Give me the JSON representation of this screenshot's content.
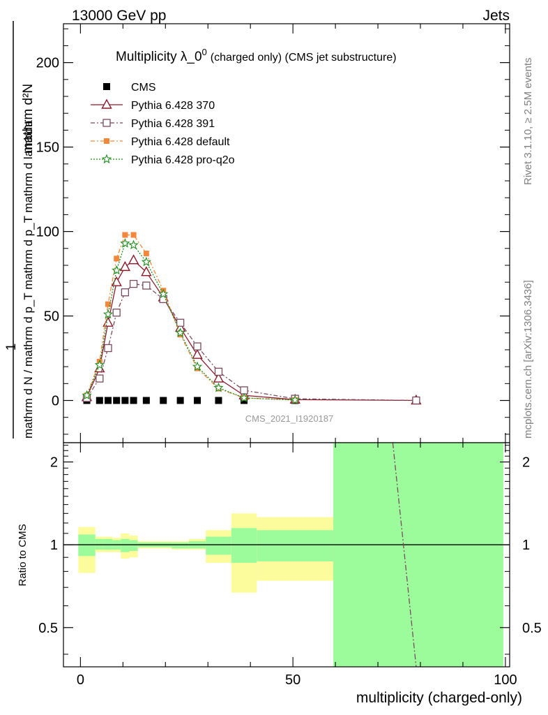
{
  "header": {
    "left": "13000 GeV pp",
    "right": "Jets"
  },
  "side_text": {
    "right_top": "Rivet 3.1.10, ≥ 2.5M events",
    "right_bottom": "mcplots.cern.ch [arXiv:1306.3436]"
  },
  "watermark": "CMS_2021_I1920187",
  "chart_data": [
    {
      "type": "line",
      "title": "Multiplicity λ_0",
      "title_sup": "0",
      "title_suffix": "(charged only) (CMS jet substructure)",
      "xlabel": "multiplicity (charged-only)",
      "ylabel_num": "mathrm d²N",
      "ylabel_den": "mathrm d N / mathrm d p_T mathrm d p_T mathrm d lambda",
      "ylabel_one": "1",
      "xlim": [
        -4,
        101
      ],
      "ylim": [
        -25,
        223
      ],
      "xticks": [
        0,
        50,
        100
      ],
      "yticks": [
        0,
        50,
        100,
        150,
        200
      ],
      "legend_position": "top-left",
      "series": [
        {
          "name": "CMS",
          "color": "#000000",
          "marker": "filled-square",
          "x": [
            1.5,
            4.5,
            6.5,
            8.5,
            10.5,
            12.5,
            15.5,
            19.5,
            23.5,
            27.5,
            32.5,
            38.5,
            50.5,
            79
          ],
          "y": [
            0,
            0,
            0,
            0,
            0,
            0,
            0,
            0,
            0,
            0,
            0,
            0,
            0,
            0
          ]
        },
        {
          "name": "Pythia 6.428 370",
          "color": "#8b1a2b",
          "marker": "open-triangle",
          "dash": "solid",
          "x": [
            1.5,
            4.5,
            6.5,
            8.5,
            10.5,
            12.5,
            15.5,
            19.5,
            23.5,
            27.5,
            32.5,
            38.5,
            50.5,
            79
          ],
          "y": [
            2,
            19,
            46,
            70,
            79,
            83,
            76,
            61,
            43,
            27,
            13,
            3,
            0.5,
            0
          ]
        },
        {
          "name": "Pythia 6.428 391",
          "color": "#7a4a5e",
          "marker": "open-square",
          "dash": "6,3,2,3",
          "x": [
            1.5,
            4.5,
            6.5,
            8.5,
            10.5,
            12.5,
            15.5,
            19.5,
            23.5,
            27.5,
            32.5,
            38.5,
            50.5,
            79
          ],
          "y": [
            1.5,
            13,
            31,
            52,
            64,
            69,
            68,
            60,
            46,
            32,
            17,
            6,
            1,
            0
          ]
        },
        {
          "name": "Pythia 6.428 default",
          "color": "#f5873a",
          "marker": "filled-square-small",
          "dash": "6,3,2,3",
          "x": [
            1.5,
            4.5,
            6.5,
            8.5,
            10.5,
            12.5,
            15.5,
            19.5,
            23.5,
            27.5,
            32.5,
            38.5,
            50.5
          ],
          "y": [
            3,
            23,
            57,
            84,
            98,
            98,
            87,
            65,
            39,
            19,
            7,
            1.5,
            0.3
          ]
        },
        {
          "name": "Pythia 6.428 pro-q2o",
          "color": "#1e8c1e",
          "marker": "open-star",
          "dash": "2,2",
          "x": [
            1.5,
            4.5,
            6.5,
            8.5,
            10.5,
            12.5,
            15.5,
            19.5,
            23.5,
            27.5,
            32.5,
            38.5,
            50.5
          ],
          "y": [
            3,
            21,
            51,
            77,
            93,
            92,
            82,
            63,
            40,
            20,
            7.5,
            1.5,
            0.2
          ]
        }
      ]
    },
    {
      "type": "area",
      "ylabel": "Ratio to CMS",
      "xlim": [
        -4,
        101
      ],
      "ylim": [
        0.36,
        2.35
      ],
      "xticks": [
        0,
        50,
        100
      ],
      "yticks": [
        0.5,
        1,
        2
      ],
      "bands": [
        {
          "x0": -0.5,
          "x1": 3.5,
          "inner": [
            0.91,
            1.09
          ],
          "outer": [
            0.79,
            1.16
          ]
        },
        {
          "x0": 3.5,
          "x1": 5.5,
          "inner": [
            0.96,
            1.05
          ],
          "outer": [
            0.94,
            1.07
          ]
        },
        {
          "x0": 5.5,
          "x1": 7.5,
          "inner": [
            0.96,
            1.05
          ],
          "outer": [
            0.94,
            1.07
          ]
        },
        {
          "x0": 7.5,
          "x1": 9.5,
          "inner": [
            0.96,
            1.04
          ],
          "outer": [
            0.94,
            1.06
          ]
        },
        {
          "x0": 9.5,
          "x1": 11.5,
          "inner": [
            0.94,
            1.05
          ],
          "outer": [
            0.89,
            1.1
          ]
        },
        {
          "x0": 11.5,
          "x1": 13.5,
          "inner": [
            0.95,
            1.04
          ],
          "outer": [
            0.9,
            1.08
          ]
        },
        {
          "x0": 13.5,
          "x1": 17.5,
          "inner": [
            0.98,
            1.02
          ],
          "outer": [
            0.97,
            1.03
          ]
        },
        {
          "x0": 17.5,
          "x1": 21.5,
          "inner": [
            0.98,
            1.02
          ],
          "outer": [
            0.97,
            1.03
          ]
        },
        {
          "x0": 21.5,
          "x1": 25.5,
          "inner": [
            0.97,
            1.02
          ],
          "outer": [
            0.96,
            1.03
          ]
        },
        {
          "x0": 25.5,
          "x1": 29.5,
          "inner": [
            0.97,
            1.03
          ],
          "outer": [
            0.96,
            1.05
          ]
        },
        {
          "x0": 29.5,
          "x1": 35.5,
          "inner": [
            0.92,
            1.07
          ],
          "outer": [
            0.86,
            1.13
          ]
        },
        {
          "x0": 35.5,
          "x1": 41.5,
          "inner": [
            0.86,
            1.15
          ],
          "outer": [
            0.67,
            1.3
          ]
        },
        {
          "x0": 41.5,
          "x1": 59.5,
          "inner": [
            0.87,
            1.13
          ],
          "outer": [
            0.74,
            1.26
          ]
        },
        {
          "x0": 59.5,
          "x1": 99.5,
          "inner": [
            0.36,
            2.35
          ],
          "outer": [
            0.36,
            2.35
          ]
        }
      ],
      "band_colors": {
        "inner": "#9cfc9c",
        "outer": "#fcfc9c"
      },
      "ratio_line": {
        "series": "Pythia 6.428 391",
        "color": "#7a4a5e",
        "x": [
          73.5,
          79
        ],
        "y": [
          2.35,
          0.36
        ]
      },
      "reference_line": 1
    }
  ]
}
